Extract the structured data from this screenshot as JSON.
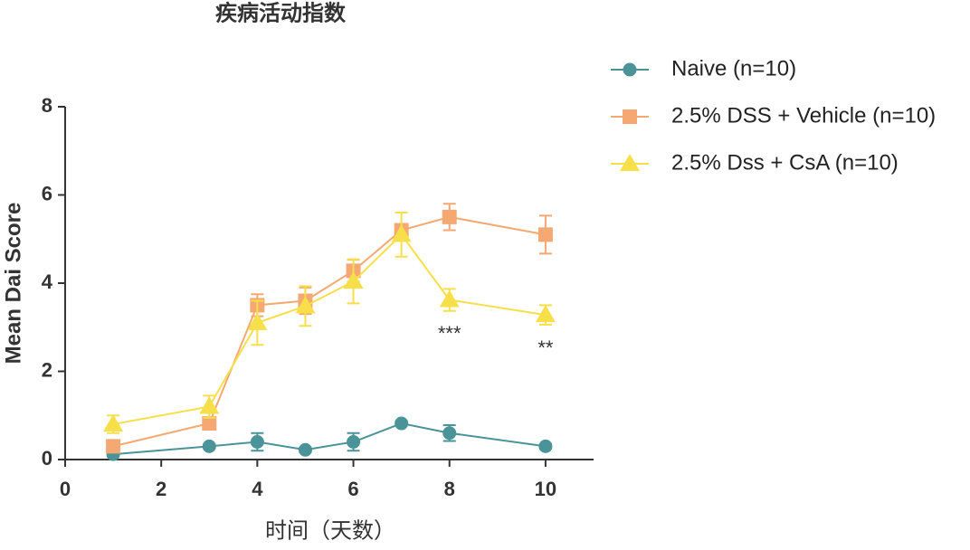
{
  "chart_data": {
    "type": "line",
    "title": "疾病活动指数",
    "x_label": "时间（天数）",
    "y_label": "Mean Dai Score",
    "x": [
      1,
      3,
      4,
      5,
      6,
      7,
      8,
      10
    ],
    "series": [
      {
        "name": "Naive (n=10)",
        "color": "#4a9499",
        "marker": "circle",
        "values": [
          0.12,
          0.3,
          0.4,
          0.22,
          0.4,
          0.82,
          0.6,
          0.3
        ],
        "errors": [
          0.05,
          0.05,
          0.2,
          0.05,
          0.2,
          0.05,
          0.18,
          0.05
        ]
      },
      {
        "name": "2.5% DSS + Vehicle (n=10)",
        "color": "#f5a872",
        "marker": "square",
        "values": [
          0.3,
          0.82,
          3.5,
          3.6,
          4.28,
          5.2,
          5.5,
          5.1
        ],
        "errors": [
          0.05,
          0.05,
          0.25,
          0.3,
          0.25,
          0.1,
          0.3,
          0.43
        ]
      },
      {
        "name": "2.5% Dss + CsA (n=10)",
        "color": "#f7df4a",
        "marker": "triangle",
        "values": [
          0.8,
          1.2,
          3.1,
          3.48,
          4.04,
          5.1,
          3.62,
          3.28
        ],
        "errors": [
          0.2,
          0.25,
          0.5,
          0.45,
          0.5,
          0.5,
          0.25,
          0.22
        ]
      }
    ],
    "annotations": [
      {
        "text": "***",
        "x": 8
      },
      {
        "text": "**",
        "x": 10
      }
    ],
    "xlim": [
      0,
      11
    ],
    "xticks": [
      0,
      2,
      4,
      6,
      8,
      10
    ],
    "ylim": [
      0,
      8
    ],
    "yticks": [
      0,
      2,
      4,
      6,
      8
    ]
  }
}
